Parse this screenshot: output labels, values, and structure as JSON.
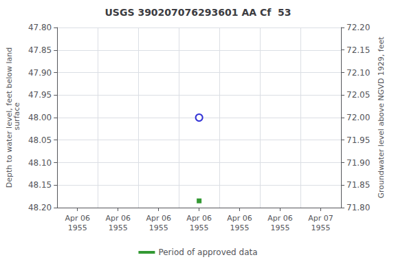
{
  "chart_data": {
    "type": "scatter",
    "title": "USGS 390207076293601 AA Cf  53",
    "categories": [
      "Apr 06\n1955",
      "Apr 06\n1955",
      "Apr 06\n1955",
      "Apr 06\n1955",
      "Apr 06\n1955",
      "Apr 06\n1955",
      "Apr 07\n1955"
    ],
    "ylabel": "Depth to water level, feet below land\n surface",
    "y2label": "Groundwater level above NGVD 1929, feet",
    "ylim": [
      48.2,
      47.8
    ],
    "yticks": [
      {
        "value": 47.8,
        "label": "47.80"
      },
      47.85,
      {
        "value": 47.9,
        "label": "47.90"
      },
      47.95,
      {
        "value": 48.0,
        "label": "48.00"
      },
      48.05,
      {
        "value": 48.1,
        "label": "48.10"
      },
      48.15,
      {
        "value": 48.2,
        "label": "48.20"
      }
    ],
    "y2lim": [
      71.8,
      72.2
    ],
    "y2ticks": [
      {
        "value": 71.8,
        "label": "71.80"
      },
      71.85,
      {
        "value": 71.9,
        "label": "71.90"
      },
      71.95,
      {
        "value": 72.0,
        "label": "72.00"
      },
      72.05,
      {
        "value": 72.1,
        "label": "72.10"
      },
      72.15,
      {
        "value": 72.2,
        "label": "72.20"
      }
    ],
    "series": [
      {
        "name": "Period of approved data",
        "color": "#008000",
        "marker": "square",
        "values": [
          null,
          null,
          null,
          48.185,
          null,
          null,
          null
        ]
      },
      {
        "color": "#0000cc",
        "marker": "open_circle",
        "values": [
          null,
          null,
          null,
          48.0,
          null,
          null,
          null
        ]
      }
    ],
    "grid": true,
    "legend": "bottom"
  }
}
